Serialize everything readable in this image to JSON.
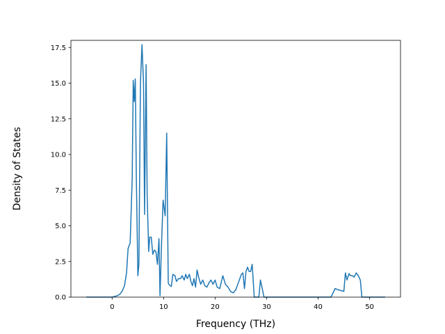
{
  "chart_data": {
    "type": "line",
    "title": "",
    "xlabel": "Frequency (THz)",
    "ylabel": "Density of States",
    "xlim": [
      -8,
      56
    ],
    "ylim": [
      0,
      17.5
    ],
    "ylim_display": [
      0,
      18.0
    ],
    "xticks": [
      0,
      10,
      20,
      30,
      40,
      50
    ],
    "xtick_labels": [
      "0",
      "10",
      "20",
      "30",
      "40",
      "50"
    ],
    "yticks": [
      0,
      2.5,
      5,
      7.5,
      10,
      12.5,
      15,
      17.5
    ],
    "ytick_labels": [
      "0.0",
      "2.5",
      "5.0",
      "7.5",
      "10.0",
      "12.5",
      "15.0",
      "17.5"
    ],
    "grid": false,
    "legend": "none",
    "series": [
      {
        "color": "#1f77b4",
        "x": [
          -5,
          -4,
          -3,
          -2,
          -1,
          0,
          0.5,
          1,
          1.5,
          2,
          2.4,
          2.8,
          3.1,
          3.5,
          3.9,
          4.1,
          4.3,
          4.5,
          4.7,
          5.0,
          5.2,
          5.5,
          5.8,
          6.1,
          6.3,
          6.6,
          6.8,
          7.1,
          7.3,
          7.6,
          7.9,
          8.2,
          8.5,
          8.8,
          9.1,
          9.3,
          9.6,
          9.9,
          10.3,
          10.6,
          10.9,
          11.1,
          11.5,
          11.8,
          12.2,
          12.5,
          12.9,
          13.3,
          13.6,
          14.0,
          14.3,
          14.6,
          15.0,
          15.3,
          15.6,
          15.9,
          16.2,
          16.5,
          16.8,
          17.2,
          17.6,
          18.0,
          18.4,
          18.8,
          19.2,
          19.6,
          20.0,
          20.4,
          20.9,
          21.5,
          22.0,
          22.5,
          23.0,
          23.5,
          24.0,
          24.5,
          24.8,
          25.1,
          25.4,
          25.7,
          26.0,
          26.3,
          26.6,
          26.9,
          27.2,
          27.6,
          27.9,
          28.2,
          28.5,
          28.8,
          29.5,
          31,
          33,
          35,
          37,
          39,
          41,
          42.5,
          43.3,
          44.0,
          44.6,
          45.0,
          45.3,
          45.6,
          46.0,
          46.3,
          46.7,
          47.0,
          47.4,
          47.8,
          48.2,
          48.5,
          49,
          51,
          53
        ],
        "y": [
          0,
          0,
          0,
          0,
          0,
          0,
          0.05,
          0.1,
          0.2,
          0.45,
          0.8,
          1.7,
          3.4,
          3.8,
          8.3,
          15.2,
          13.7,
          15.3,
          8.5,
          1.5,
          2.3,
          15.0,
          17.7,
          15.0,
          5.8,
          16.3,
          7.2,
          3.2,
          4.2,
          4.2,
          3.0,
          3.3,
          3.2,
          2.3,
          4.1,
          0.1,
          3.8,
          6.8,
          5.7,
          11.5,
          1.0,
          0.85,
          0.75,
          1.6,
          1.5,
          1.1,
          1.3,
          1.3,
          1.5,
          1.2,
          1.6,
          1.3,
          1.6,
          1.1,
          0.8,
          1.3,
          0.7,
          1.9,
          1.4,
          0.9,
          1.2,
          0.8,
          0.7,
          1.0,
          1.2,
          0.9,
          1.2,
          0.7,
          0.6,
          1.5,
          0.9,
          0.7,
          0.4,
          0.3,
          0.5,
          1.0,
          1.3,
          1.6,
          1.7,
          0.6,
          1.8,
          2.1,
          1.8,
          1.8,
          2.3,
          0,
          0,
          0,
          0,
          1.2,
          0,
          0,
          0,
          0,
          0,
          0,
          0,
          0,
          0.6,
          0.5,
          0.45,
          0.4,
          1.7,
          1.2,
          1.65,
          1.5,
          1.5,
          1.4,
          1.7,
          1.5,
          1.2,
          0,
          0,
          0,
          0
        ]
      }
    ]
  }
}
